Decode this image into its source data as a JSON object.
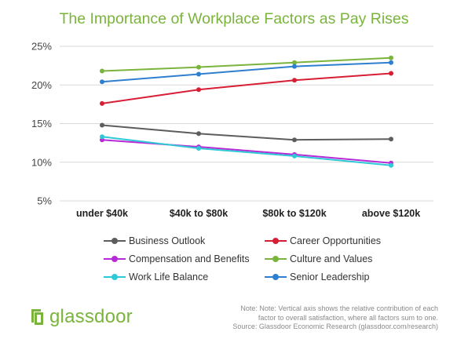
{
  "chart_data": {
    "type": "line",
    "title": "The Importance of Workplace Factors as Pay Rises",
    "categories": [
      "under $40k",
      "$40k to $80k",
      "$80k to $120k",
      "above $120k"
    ],
    "yticks": [
      "25%",
      "20%",
      "15%",
      "10%",
      "5%"
    ],
    "ylim": [
      5,
      25
    ],
    "grid": true,
    "legend_position": "bottom",
    "series": [
      {
        "name": "Business Outlook",
        "color": "#5d5d5d",
        "values": [
          14.8,
          13.7,
          12.9,
          13.0
        ]
      },
      {
        "name": "Career Opportunities",
        "color": "#d81e35",
        "values": [
          17.6,
          19.4,
          20.6,
          21.5
        ]
      },
      {
        "name": "Compensation and Benefits",
        "color": "#b82ad6",
        "values": [
          12.9,
          12.0,
          11.0,
          9.9
        ]
      },
      {
        "name": "Culture and Values",
        "color": "#7ab43c",
        "values": [
          21.8,
          22.3,
          22.9,
          23.5
        ]
      },
      {
        "name": "Work Life Balance",
        "color": "#2ec9d6",
        "values": [
          13.3,
          11.8,
          10.8,
          9.6
        ]
      },
      {
        "name": "Senior Leadership",
        "color": "#2f7fd0",
        "values": [
          20.4,
          21.4,
          22.4,
          22.9
        ]
      }
    ]
  },
  "legend_order": [
    0,
    1,
    2,
    3,
    4,
    5
  ],
  "logo": {
    "text": "glassdoor",
    "icon": "glassdoor-door-icon",
    "color": "#7ab43c"
  },
  "note": {
    "line1": "Note: Note: Vertical axis shows the relative contribution of each",
    "line2": "factor to overall satisfaction, where all factors sum to one.",
    "line3": "Source: Glassdoor Economic Research (glassdoor.com/research)"
  }
}
